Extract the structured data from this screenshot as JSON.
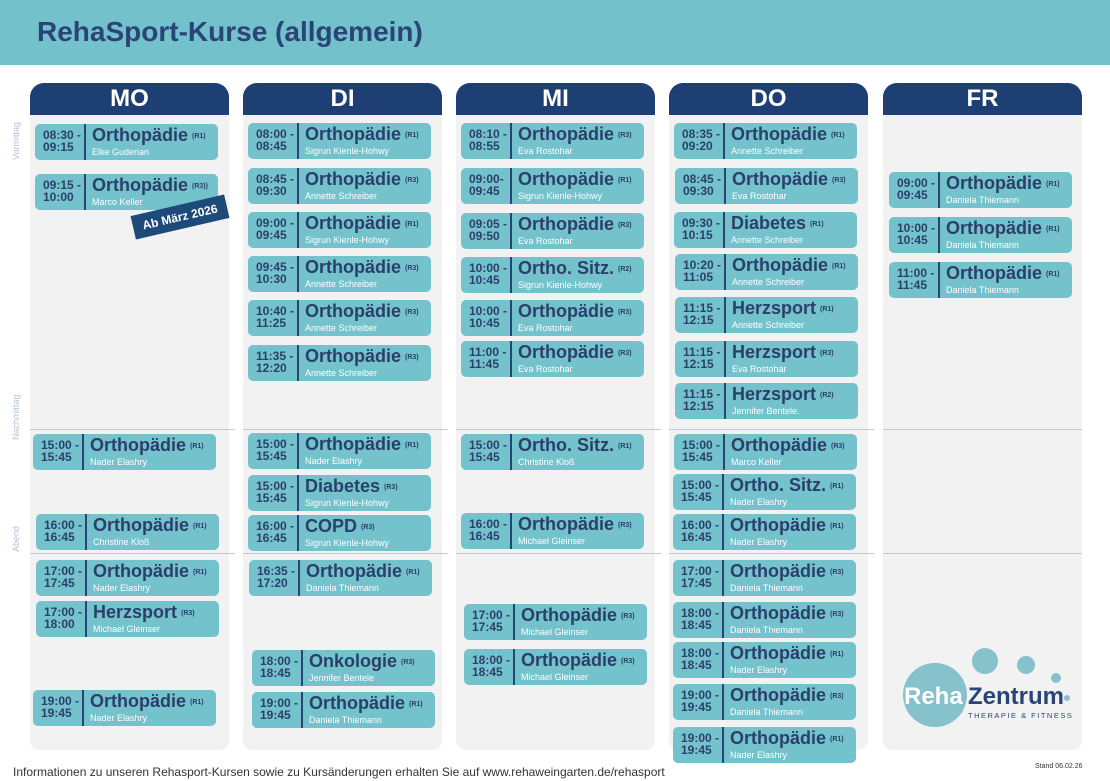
{
  "title": "RehaSport-Kurse (allgemein)",
  "side_labels": [
    "Vormittag",
    "Nachmittag",
    "Abend"
  ],
  "badge": "Ab März 2026",
  "footer": "Informationen zu unseren Rehasport-Kursen sowie zu Kursänderungen erhalten Sie auf www.rehaweingarten.de/rehasport",
  "stand": "Stand 06.02.26",
  "logo": {
    "text1": "Reha",
    "text2": "Zentrum",
    "tagline": "THERAPIE & FITNESS"
  },
  "colors": {
    "header_band": "#72c1cb",
    "day_header": "#1d3f73",
    "card": "#74c2cc",
    "text": "#2b3f6b"
  },
  "days": [
    {
      "name": "MO",
      "courses": [
        {
          "start": "08:30 -",
          "end": "09:15",
          "course": "Orthopädie",
          "room": "(R1)",
          "trainer": "Elke Guderian"
        },
        {
          "start": "09:15 -",
          "end": "10:00",
          "course": "Orthopädie",
          "room": "(R3))",
          "trainer": "Marco Keller"
        },
        {
          "start": "15:00 -",
          "end": "15:45",
          "course": "Orthopädie",
          "room": "(R1)",
          "trainer": "Nader Elashry"
        },
        {
          "start": "16:00 -",
          "end": "16:45",
          "course": "Orthopädie",
          "room": "(R1)",
          "trainer": "Christine Kloß"
        },
        {
          "start": "17:00 -",
          "end": "17:45",
          "course": "Orthopädie",
          "room": "(R1)",
          "trainer": "Nader Elashry"
        },
        {
          "start": "17:00 -",
          "end": "18:00",
          "course": "Herzsport",
          "room": "(R3)",
          "trainer": "Michael Gleinser"
        },
        {
          "start": "19:00 -",
          "end": "19:45",
          "course": "Orthopädie",
          "room": "(R1)",
          "trainer": "Nader Elashry"
        }
      ]
    },
    {
      "name": "DI",
      "courses": [
        {
          "start": "08:00 -",
          "end": "08:45",
          "course": "Orthopädie",
          "room": "(R1)",
          "trainer": "Sigrun Kienle-Hohwy"
        },
        {
          "start": "08:45 -",
          "end": "09:30",
          "course": "Orthopädie",
          "room": "(R3)",
          "trainer": "Annette Schreiber"
        },
        {
          "start": "09:00 -",
          "end": "09:45",
          "course": "Orthopädie",
          "room": "(R1)",
          "trainer": "Sigrun Kienle-Hohwy"
        },
        {
          "start": "09:45 -",
          "end": "10:30",
          "course": "Orthopädie",
          "room": "(R3)",
          "trainer": "Annette Schreiber"
        },
        {
          "start": "10:40 -",
          "end": "11:25",
          "course": "Orthopädie",
          "room": "(R3)",
          "trainer": "Annette Schreiber"
        },
        {
          "start": "11:35 -",
          "end": "12:20",
          "course": "Orthopädie",
          "room": "(R3)",
          "trainer": "Annette Schreiber"
        },
        {
          "start": "15:00 -",
          "end": "15:45",
          "course": "Orthopädie",
          "room": "(R1)",
          "trainer": "Nader Elashry"
        },
        {
          "start": "15:00 -",
          "end": "15:45",
          "course": "Diabetes",
          "room": "(R3)",
          "trainer": "Sigrun Kienle-Hohwy"
        },
        {
          "start": "16:00 -",
          "end": "16:45",
          "course": "COPD",
          "room": "(R3)",
          "trainer": "Sigrun Kienle-Hohwy"
        },
        {
          "start": "16:35 -",
          "end": "17:20",
          "course": "Orthopädie",
          "room": "(R1)",
          "trainer": "Daniela Thiemann"
        },
        {
          "start": "18:00 -",
          "end": "18:45",
          "course": "Onkologie",
          "room": "(R3)",
          "trainer": "Jennifer Bentele"
        },
        {
          "start": "19:00 -",
          "end": "19:45",
          "course": "Orthopädie",
          "room": "(R1)",
          "trainer": "Daniela Thiemann"
        }
      ]
    },
    {
      "name": "MI",
      "courses": [
        {
          "start": "08:10 -",
          "end": "08:55",
          "course": "Orthopädie",
          "room": "(R3)",
          "trainer": "Eva Rostohar"
        },
        {
          "start": "09:00-",
          "end": "09:45",
          "course": "Orthopädie",
          "room": "(R1)",
          "trainer": "Sigrun Kienle-Hohwy"
        },
        {
          "start": "09:05 -",
          "end": "09:50",
          "course": "Orthopädie",
          "room": "(R3)",
          "trainer": "Eva Rostohar"
        },
        {
          "start": "10:00 -",
          "end": "10:45",
          "course": "Ortho. Sitz.",
          "room": "(R2)",
          "trainer": "Sigrun Kienle-Hohwy"
        },
        {
          "start": "10:00 -",
          "end": "10:45",
          "course": "Orthopädie",
          "room": "(R3)",
          "trainer": "Eva Rostohar"
        },
        {
          "start": "11:00 -",
          "end": "11:45",
          "course": "Orthopädie",
          "room": "(R3)",
          "trainer": "Eva Rostohar"
        },
        {
          "start": "15:00 -",
          "end": "15:45",
          "course": "Ortho. Sitz.",
          "room": "(R1)",
          "trainer": "Christine Kloß"
        },
        {
          "start": "16:00 -",
          "end": "16:45",
          "course": "Orthopädie",
          "room": "(R3)",
          "trainer": "Michael Gleinser"
        },
        {
          "start": "17:00 -",
          "end": "17:45",
          "course": "Orthopädie",
          "room": "(R3)",
          "trainer": "Michael Gleinser"
        },
        {
          "start": "18:00 -",
          "end": "18:45",
          "course": "Orthopädie",
          "room": "(R3)",
          "trainer": "Michael Gleinser"
        }
      ]
    },
    {
      "name": "DO",
      "courses": [
        {
          "start": "08:35 -",
          "end": "09:20",
          "course": "Orthopädie",
          "room": "(R1)",
          "trainer": "Annette Schreiber"
        },
        {
          "start": "08:45 -",
          "end": "09:30",
          "course": "Orthopädie",
          "room": "(R3)",
          "trainer": "Eva Rostohar"
        },
        {
          "start": "09:30 -",
          "end": "10:15",
          "course": "Diabetes",
          "room": "(R1)",
          "trainer": "Annette Schreiber"
        },
        {
          "start": "10:20 -",
          "end": "11:05",
          "course": "Orthopädie",
          "room": "(R1)",
          "trainer": "Annette Schreiber"
        },
        {
          "start": "11:15 -",
          "end": "12:15",
          "course": "Herzsport",
          "room": "(R1)",
          "trainer": "Annette Schreiber"
        },
        {
          "start": "11:15 -",
          "end": "12:15",
          "course": "Herzsport",
          "room": "(R3)",
          "trainer": "Eva Rostohar"
        },
        {
          "start": "11:15 -",
          "end": "12:15",
          "course": "Herzsport",
          "room": "(R2)",
          "trainer": "Jennifer Bentele."
        },
        {
          "start": "15:00 -",
          "end": "15:45",
          "course": "Orthopädie",
          "room": "(R3)",
          "trainer": "Marco Keller"
        },
        {
          "start": "15:00 -",
          "end": "15:45",
          "course": "Ortho. Sitz.",
          "room": "(R1)",
          "trainer": "Nader Elashry"
        },
        {
          "start": "16:00 -",
          "end": "16:45",
          "course": "Orthopädie",
          "room": "(R1)",
          "trainer": "Nader Elashry"
        },
        {
          "start": "17:00 -",
          "end": "17:45",
          "course": "Orthopädie",
          "room": "(R3)",
          "trainer": "Daniela Thiemann"
        },
        {
          "start": "18:00 -",
          "end": "18:45",
          "course": "Orthopädie",
          "room": "(R3)",
          "trainer": "Daniela Thiemann"
        },
        {
          "start": "18:00 -",
          "end": "18:45",
          "course": "Orthopädie",
          "room": "(R1)",
          "trainer": "Nader Elashry"
        },
        {
          "start": "19:00 -",
          "end": "19:45",
          "course": "Orthopädie",
          "room": "(R3)",
          "trainer": "Daniela Thiemann"
        },
        {
          "start": "19:00 -",
          "end": "19:45",
          "course": "Orthopädie",
          "room": "(R1)",
          "trainer": "Nader Elashry"
        }
      ]
    },
    {
      "name": "FR",
      "courses": [
        {
          "start": "09:00 -",
          "end": "09:45",
          "course": "Orthopädie",
          "room": "(R1)",
          "trainer": "Daniela  Thiemann"
        },
        {
          "start": "10:00 -",
          "end": "10:45",
          "course": "Orthopädie",
          "room": "(R1)",
          "trainer": "Daniela Thiemann"
        },
        {
          "start": "11:00 -",
          "end": "11:45",
          "course": "Orthopädie",
          "room": "(R1)",
          "trainer": "Daniela Thiemann"
        }
      ]
    }
  ]
}
